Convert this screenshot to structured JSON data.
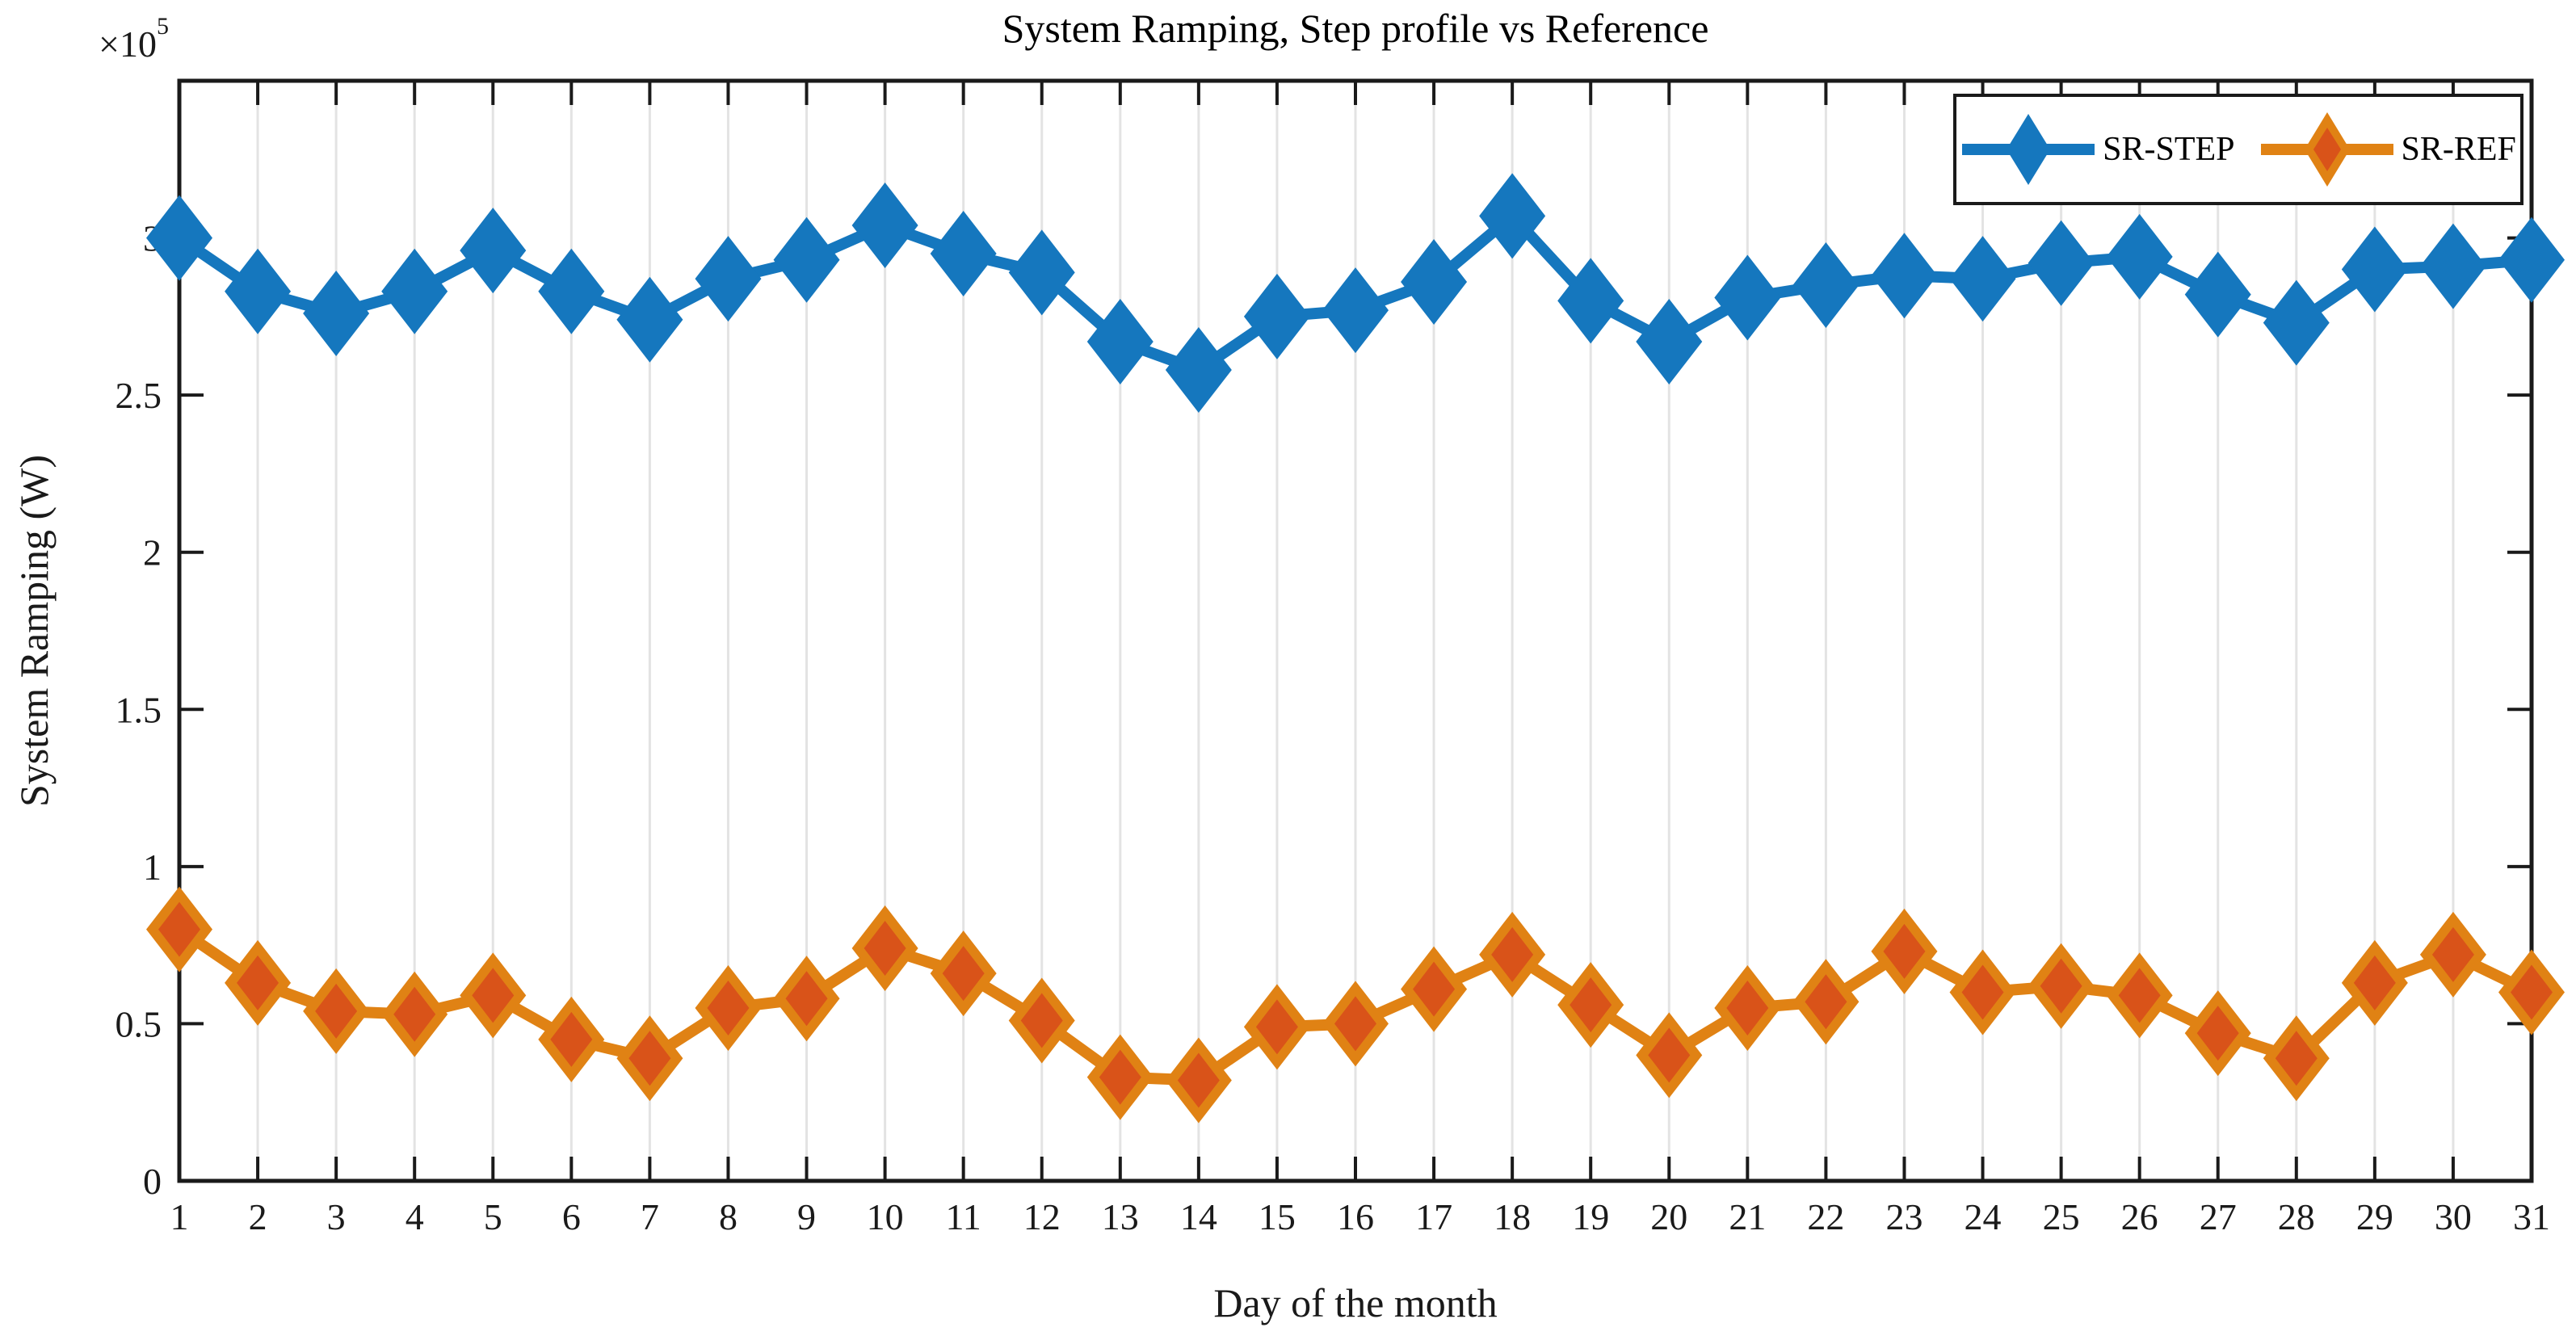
{
  "figure": {
    "title": "System Ramping, Step profile vs Reference",
    "xlabel": "Day of the month",
    "ylabel": "System Ramping (W)",
    "y_exponent_prefix": "×10",
    "y_exponent_power": "5",
    "background": "#ffffff",
    "axis_color": "#1a1a1a",
    "grid_color": "#e3e3e3"
  },
  "legend": {
    "position": "north-east-inside",
    "items": [
      {
        "label": "SR-STEP",
        "marker": "diamond",
        "color": "#1577BE"
      },
      {
        "label": "SR-REF",
        "marker": "diamond",
        "color": "#E08214",
        "marker_face": "#D95319"
      }
    ]
  },
  "chart_data": {
    "type": "line",
    "title": "System Ramping, Step profile vs Reference",
    "xlabel": "Day of the month",
    "ylabel": "System Ramping (W)",
    "y_unit_multiplier": "1e5",
    "xlim": [
      1,
      31
    ],
    "ylim": [
      0,
      3.5
    ],
    "grid": "vertical-only",
    "box": true,
    "x": [
      1,
      2,
      3,
      4,
      5,
      6,
      7,
      8,
      9,
      10,
      11,
      12,
      13,
      14,
      15,
      16,
      17,
      18,
      19,
      20,
      21,
      22,
      23,
      24,
      25,
      26,
      27,
      28,
      29,
      30,
      31
    ],
    "x_tick_labels": [
      "1",
      "2",
      "3",
      "4",
      "5",
      "6",
      "7",
      "8",
      "9",
      "10",
      "11",
      "12",
      "13",
      "14",
      "15",
      "16",
      "17",
      "18",
      "19",
      "20",
      "21",
      "22",
      "23",
      "24",
      "25",
      "26",
      "27",
      "28",
      "29",
      "30",
      "31"
    ],
    "y_tick_values": [
      0,
      0.5,
      1,
      1.5,
      2,
      2.5,
      3
    ],
    "y_tick_labels": [
      "0",
      "0.5",
      "1",
      "1.5",
      "2",
      "2.5",
      "3"
    ],
    "series": [
      {
        "name": "SR-STEP",
        "line_color": "#1577BE",
        "marker": "diamond",
        "marker_face": "#1577BE",
        "values_x1e5": [
          3.0,
          2.83,
          2.76,
          2.83,
          2.96,
          2.83,
          2.74,
          2.87,
          2.93,
          3.04,
          2.95,
          2.89,
          2.67,
          2.58,
          2.75,
          2.77,
          2.86,
          3.07,
          2.8,
          2.67,
          2.81,
          2.85,
          2.88,
          2.87,
          2.92,
          2.94,
          2.82,
          2.73,
          2.9,
          2.91,
          2.93
        ]
      },
      {
        "name": "SR-REF",
        "line_color": "#E08214",
        "marker": "diamond",
        "marker_face": "#D95319",
        "values_x1e5": [
          0.8,
          0.63,
          0.54,
          0.53,
          0.59,
          0.45,
          0.39,
          0.55,
          0.58,
          0.74,
          0.66,
          0.51,
          0.33,
          0.32,
          0.49,
          0.5,
          0.61,
          0.72,
          0.56,
          0.4,
          0.55,
          0.57,
          0.73,
          0.6,
          0.62,
          0.59,
          0.47,
          0.39,
          0.63,
          0.72,
          0.6
        ]
      }
    ]
  }
}
